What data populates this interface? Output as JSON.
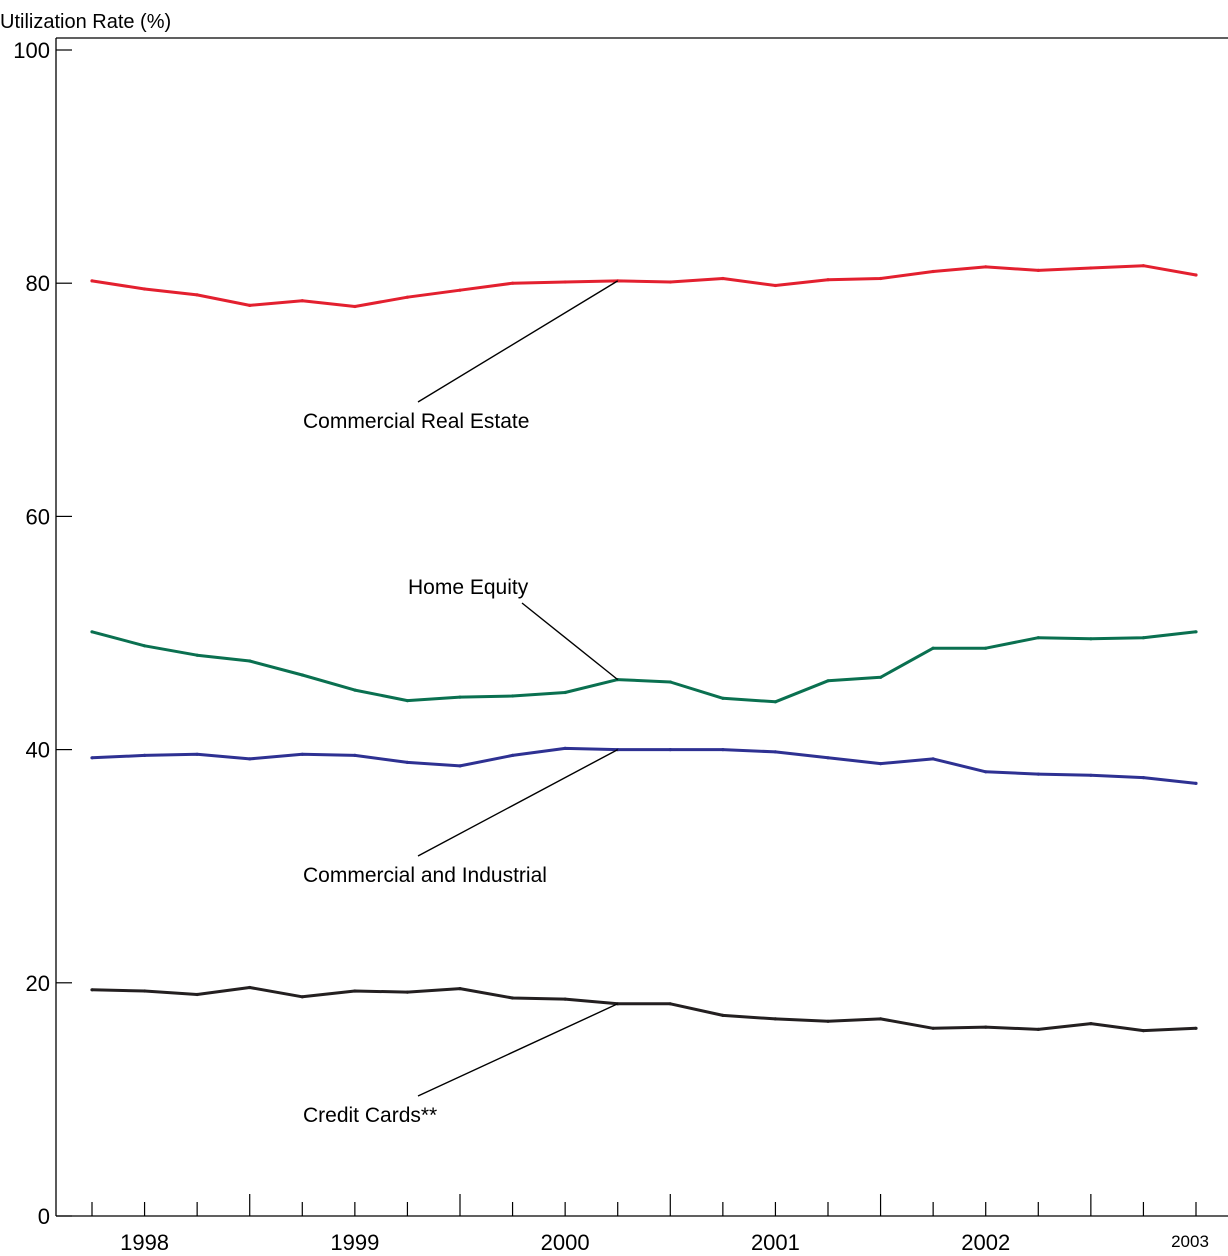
{
  "chart_data": {
    "type": "line",
    "ylabel": "Utilization Rate (%)",
    "ylim": [
      0,
      100
    ],
    "yticks": [
      0,
      20,
      40,
      60,
      80,
      100
    ],
    "x_start": 1997.75,
    "x_step": 0.25,
    "x_min": 1997.75,
    "x_max": 2003.0,
    "xtick_labels": [
      {
        "label": "1998",
        "x": 1998.0
      },
      {
        "label": "1999",
        "x": 1999.0
      },
      {
        "label": "2000",
        "x": 2000.0
      },
      {
        "label": "2001",
        "x": 2001.0
      },
      {
        "label": "2002",
        "x": 2002.0
      },
      {
        "label": "2003",
        "x": 2003.0,
        "small": true
      }
    ],
    "series": [
      {
        "name": "Commercial Real Estate",
        "color": "#e3202f",
        "values": [
          80.2,
          79.5,
          79.0,
          78.1,
          78.5,
          78.0,
          78.8,
          79.4,
          80.0,
          80.1,
          80.2,
          80.1,
          80.4,
          79.8,
          80.3,
          80.4,
          81.0,
          81.4,
          81.1,
          81.3,
          81.5,
          80.7
        ],
        "label_anchor_index": 10
      },
      {
        "name": "Home Equity",
        "color": "#0a7050",
        "values": [
          50.1,
          48.9,
          48.1,
          47.6,
          46.4,
          45.1,
          44.2,
          44.5,
          44.6,
          44.9,
          46.0,
          45.8,
          44.4,
          44.1,
          45.9,
          46.2,
          48.7,
          48.7,
          49.6,
          49.5,
          49.6,
          50.1
        ],
        "label_anchor_index": 10
      },
      {
        "name": "Commercial and Industrial",
        "color": "#2e3192",
        "values": [
          39.3,
          39.5,
          39.6,
          39.2,
          39.6,
          39.5,
          38.9,
          38.6,
          39.5,
          40.1,
          40.0,
          40.0,
          40.0,
          39.8,
          39.3,
          38.8,
          39.2,
          38.1,
          37.9,
          37.8,
          37.6,
          37.1
        ],
        "label_anchor_index": 10
      },
      {
        "name": "Credit Cards**",
        "color": "#231f20",
        "values": [
          19.4,
          19.3,
          19.0,
          19.6,
          18.8,
          19.3,
          19.2,
          19.5,
          18.7,
          18.6,
          18.2,
          18.2,
          17.2,
          16.9,
          16.7,
          16.9,
          16.1,
          16.2,
          16.0,
          16.5,
          15.9,
          16.1
        ],
        "label_anchor_index": 10
      }
    ]
  }
}
